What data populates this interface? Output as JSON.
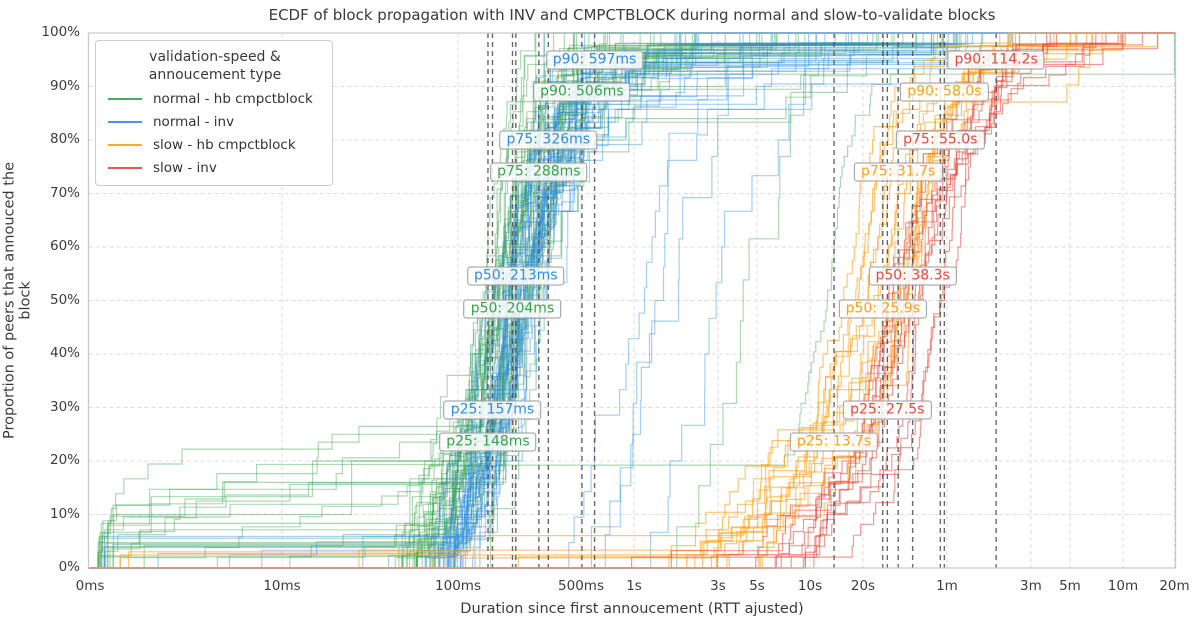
{
  "title": "ECDF of block propagation with INV and CMPCTBLOCK during normal and slow-to-validate blocks",
  "axes": {
    "x_label": "Duration since first annoucement (RTT ajusted)",
    "y_label": "Proportion of peers that annouced the block",
    "x_ticks": [
      {
        "label": "0ms",
        "ms": 0
      },
      {
        "label": "10ms",
        "ms": 10
      },
      {
        "label": "100ms",
        "ms": 100
      },
      {
        "label": "500ms",
        "ms": 500
      },
      {
        "label": "1s",
        "ms": 1000
      },
      {
        "label": "3s",
        "ms": 3000
      },
      {
        "label": "5s",
        "ms": 5000
      },
      {
        "label": "10s",
        "ms": 10000
      },
      {
        "label": "20s",
        "ms": 20000
      },
      {
        "label": "1m",
        "ms": 60000
      },
      {
        "label": "3m",
        "ms": 180000
      },
      {
        "label": "5m",
        "ms": 300000
      },
      {
        "label": "10m",
        "ms": 600000
      },
      {
        "label": "20m",
        "ms": 1200000
      }
    ],
    "y_ticks": [
      {
        "label": "0%",
        "pct": 0
      },
      {
        "label": "10%",
        "pct": 10
      },
      {
        "label": "20%",
        "pct": 20
      },
      {
        "label": "30%",
        "pct": 30
      },
      {
        "label": "40%",
        "pct": 40
      },
      {
        "label": "50%",
        "pct": 50
      },
      {
        "label": "60%",
        "pct": 60
      },
      {
        "label": "70%",
        "pct": 70
      },
      {
        "label": "80%",
        "pct": 80
      },
      {
        "label": "90%",
        "pct": 90
      },
      {
        "label": "100%",
        "pct": 100
      }
    ]
  },
  "legend": {
    "title_line1": "validation-speed &",
    "title_line2": "annoucement type",
    "items": [
      {
        "id": "normal_hb",
        "label": "normal - hb cmpctblock",
        "color": "#3aa14b"
      },
      {
        "id": "normal_inv",
        "label": "normal - inv",
        "color": "#2e8ce6"
      },
      {
        "id": "slow_hb",
        "label": "slow - hb cmpctblock",
        "color": "#ffa012"
      },
      {
        "id": "slow_inv",
        "label": "slow - inv",
        "color": "#e6483d"
      }
    ]
  },
  "chart_data": {
    "type": "line",
    "subtype": "ecdf-step-curves",
    "x_scale": "log (symlog: 0ms then 10ms..20m log decades)",
    "y_range_pct": [
      0,
      100
    ],
    "grid": true,
    "legend_position": "upper-left",
    "series": [
      {
        "id": "normal_hb",
        "name": "normal - hb cmpctblock",
        "color": "#3aa14b",
        "percentiles_ms": {
          "p25": 148,
          "p50": 204,
          "p75": 288,
          "p90": 506
        }
      },
      {
        "id": "normal_inv",
        "name": "normal - inv",
        "color": "#2e8ce6",
        "percentiles_ms": {
          "p25": 157,
          "p50": 213,
          "p75": 326,
          "p90": 597
        }
      },
      {
        "id": "slow_hb",
        "name": "slow - hb cmpctblock",
        "color": "#ffa012",
        "percentiles_ms": {
          "p25": 13700,
          "p50": 25900,
          "p75": 31700,
          "p90": 58000
        }
      },
      {
        "id": "slow_inv",
        "name": "slow - inv",
        "color": "#e6483d",
        "percentiles_ms": {
          "p25": 27500,
          "p50": 38300,
          "p75": 55000,
          "p90": 114200
        }
      }
    ],
    "annotations": [
      {
        "text": "p90: 597ms",
        "series": "normal_inv",
        "value_ms": 597,
        "y_pct": 95
      },
      {
        "text": "p90: 506ms",
        "series": "normal_hb",
        "value_ms": 506,
        "y_pct": 89
      },
      {
        "text": "p75: 326ms",
        "series": "normal_inv",
        "value_ms": 326,
        "y_pct": 80
      },
      {
        "text": "p75: 288ms",
        "series": "normal_hb",
        "value_ms": 288,
        "y_pct": 74
      },
      {
        "text": "p50: 213ms",
        "series": "normal_inv",
        "value_ms": 213,
        "y_pct": 54.5
      },
      {
        "text": "p50: 204ms",
        "series": "normal_hb",
        "value_ms": 204,
        "y_pct": 48.5
      },
      {
        "text": "p25: 157ms",
        "series": "normal_inv",
        "value_ms": 157,
        "y_pct": 29.5
      },
      {
        "text": "p25: 148ms",
        "series": "normal_hb",
        "value_ms": 148,
        "y_pct": 23.5
      },
      {
        "text": "p90: 114.2s",
        "series": "slow_inv",
        "value_ms": 114200,
        "y_pct": 95
      },
      {
        "text": "p90: 58.0s",
        "series": "slow_hb",
        "value_ms": 58000,
        "y_pct": 89
      },
      {
        "text": "p75: 55.0s",
        "series": "slow_inv",
        "value_ms": 55000,
        "y_pct": 80
      },
      {
        "text": "p75: 31.7s",
        "series": "slow_hb",
        "value_ms": 31700,
        "y_pct": 74
      },
      {
        "text": "p50: 38.3s",
        "series": "slow_inv",
        "value_ms": 38300,
        "y_pct": 54.5
      },
      {
        "text": "p50: 25.9s",
        "series": "slow_hb",
        "value_ms": 25900,
        "y_pct": 48.5
      },
      {
        "text": "p25: 27.5s",
        "series": "slow_inv",
        "value_ms": 27500,
        "y_pct": 29.5
      },
      {
        "text": "p25: 13.7s",
        "series": "slow_hb",
        "value_ms": 13700,
        "y_pct": 23.5
      }
    ]
  }
}
